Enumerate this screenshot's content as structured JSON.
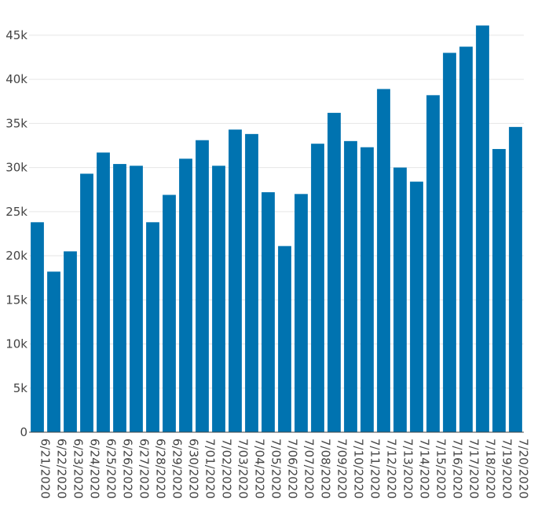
{
  "chart_data": {
    "type": "bar",
    "title": "",
    "xlabel": "",
    "ylabel": "",
    "categories": [
      "6/21/2020",
      "6/22/2020",
      "6/23/2020",
      "6/24/2020",
      "6/25/2020",
      "6/26/2020",
      "6/27/2020",
      "6/28/2020",
      "6/29/2020",
      "6/30/2020",
      "7/01/2020",
      "7/02/2020",
      "7/03/2020",
      "7/04/2020",
      "7/05/2020",
      "7/06/2020",
      "7/07/2020",
      "7/08/2020",
      "7/09/2020",
      "7/10/2020",
      "7/11/2020",
      "7/12/2020",
      "7/13/2020",
      "7/14/2020",
      "7/15/2020",
      "7/16/2020",
      "7/17/2020",
      "7/18/2020",
      "7/19/2020",
      "7/20/2020"
    ],
    "values": [
      23800,
      18200,
      20500,
      29300,
      31700,
      30400,
      30200,
      23800,
      26900,
      31000,
      33100,
      30200,
      34300,
      33800,
      27200,
      21100,
      27000,
      32700,
      36200,
      33000,
      32300,
      38900,
      30000,
      28400,
      38200,
      43000,
      43700,
      46100,
      32100,
      34600
    ],
    "ylim": [
      0,
      46500
    ],
    "yticks": [
      0,
      5000,
      10000,
      15000,
      20000,
      25000,
      30000,
      35000,
      40000,
      45000
    ],
    "ytick_labels": [
      "0",
      "5k",
      "10k",
      "15k",
      "20k",
      "25k",
      "30k",
      "35k",
      "40k",
      "45k"
    ],
    "grid": true,
    "bar_color": "#0073B0"
  }
}
